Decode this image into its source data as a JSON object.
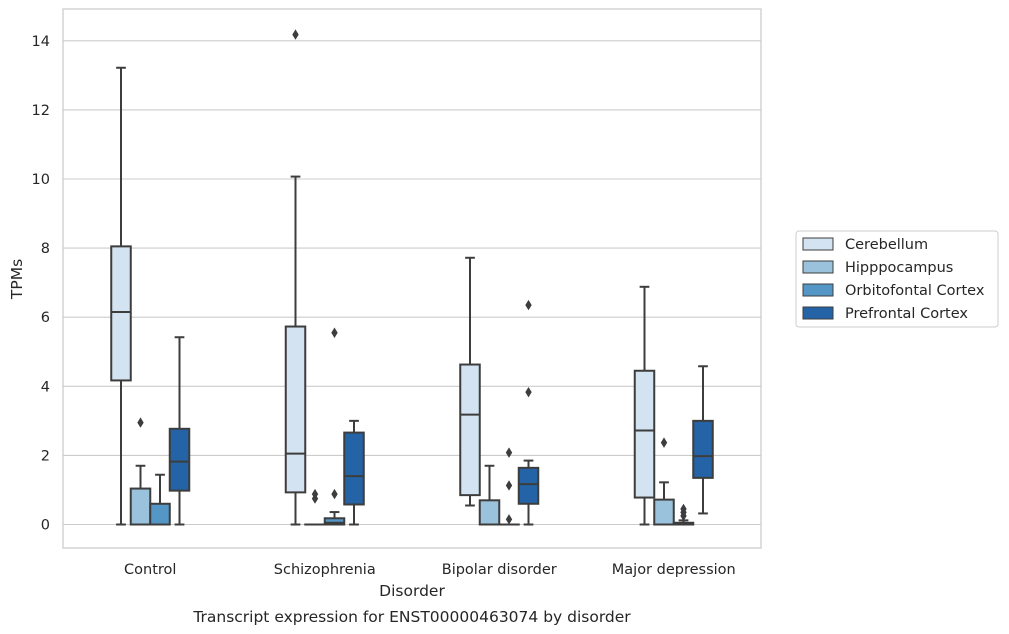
{
  "chart_data": {
    "type": "box",
    "title": "",
    "caption": "Transcript expression for ENST00000463074 by disorder",
    "xlabel": "Disorder",
    "ylabel": "TPMs",
    "ylim": [
      -0.7,
      14.9
    ],
    "yticks": [
      0,
      2,
      4,
      6,
      8,
      10,
      12,
      14
    ],
    "grid": true,
    "legend_position": "right",
    "categories": [
      "Control",
      "Schizophrenia",
      "Bipolar disorder",
      "Major depression"
    ],
    "series": [
      {
        "name": "Cerebellum",
        "color": "#d4e3f1",
        "boxes": [
          {
            "whisker_low": 0.0,
            "q1": 4.17,
            "median": 6.15,
            "q3": 8.05,
            "whisker_high": 13.22,
            "outliers": []
          },
          {
            "whisker_low": 0.0,
            "q1": 0.93,
            "median": 2.05,
            "q3": 5.73,
            "whisker_high": 10.07,
            "outliers": [
              14.18
            ]
          },
          {
            "whisker_low": 0.55,
            "q1": 0.85,
            "median": 3.18,
            "q3": 4.63,
            "whisker_high": 7.72,
            "outliers": []
          },
          {
            "whisker_low": 0.0,
            "q1": 0.78,
            "median": 2.72,
            "q3": 4.45,
            "whisker_high": 6.88,
            "outliers": []
          }
        ]
      },
      {
        "name": "Hipppocampus",
        "color": "#9ac2dc",
        "boxes": [
          {
            "whisker_low": 0.0,
            "q1": 0.0,
            "median": 0.0,
            "q3": 1.04,
            "whisker_high": 1.7,
            "outliers": [
              2.95
            ]
          },
          {
            "whisker_low": 0.0,
            "q1": 0.0,
            "median": 0.0,
            "q3": 0.0,
            "whisker_high": 0.0,
            "outliers": [
              0.88,
              0.75
            ]
          },
          {
            "whisker_low": 0.0,
            "q1": 0.0,
            "median": 0.0,
            "q3": 0.7,
            "whisker_high": 1.7,
            "outliers": []
          },
          {
            "whisker_low": 0.0,
            "q1": 0.0,
            "median": 0.0,
            "q3": 0.72,
            "whisker_high": 1.22,
            "outliers": [
              2.37
            ]
          }
        ]
      },
      {
        "name": "Orbitofontal Cortex",
        "color": "#5497c6",
        "boxes": [
          {
            "whisker_low": 0.0,
            "q1": 0.0,
            "median": 0.0,
            "q3": 0.6,
            "whisker_high": 1.44,
            "outliers": []
          },
          {
            "whisker_low": 0.0,
            "q1": 0.0,
            "median": 0.05,
            "q3": 0.18,
            "whisker_high": 0.36,
            "outliers": [
              0.88,
              5.55
            ]
          },
          {
            "whisker_low": 0.0,
            "q1": 0.0,
            "median": 0.0,
            "q3": 0.0,
            "whisker_high": 0.0,
            "outliers": [
              0.15,
              2.08,
              1.13
            ]
          },
          {
            "whisker_low": 0.0,
            "q1": 0.0,
            "median": 0.0,
            "q3": 0.05,
            "whisker_high": 0.12,
            "outliers": [
              0.25,
              0.35,
              0.45
            ]
          }
        ]
      },
      {
        "name": "Prefrontal Cortex",
        "color": "#2463a6",
        "boxes": [
          {
            "whisker_low": 0.0,
            "q1": 0.98,
            "median": 1.82,
            "q3": 2.77,
            "whisker_high": 5.42,
            "outliers": []
          },
          {
            "whisker_low": 0.0,
            "q1": 0.58,
            "median": 1.4,
            "q3": 2.66,
            "whisker_high": 3.0,
            "outliers": []
          },
          {
            "whisker_low": 0.0,
            "q1": 0.6,
            "median": 1.17,
            "q3": 1.64,
            "whisker_high": 1.85,
            "outliers": [
              3.83,
              6.35
            ]
          },
          {
            "whisker_low": 0.32,
            "q1": 1.35,
            "median": 1.98,
            "q3": 3.0,
            "whisker_high": 4.58,
            "outliers": []
          }
        ]
      }
    ]
  }
}
